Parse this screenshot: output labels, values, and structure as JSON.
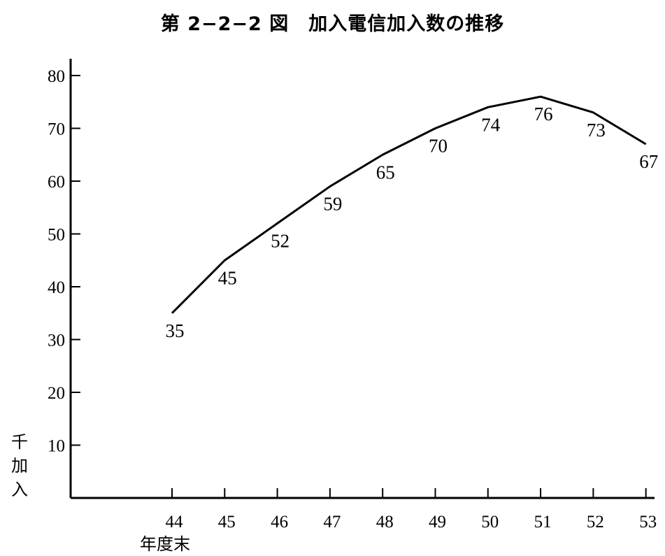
{
  "title": "第 2−2−2 図　加入電信加入数の推移",
  "chart_data": {
    "type": "line",
    "title": "第 2−2−2 図　加入電信加入数の推移",
    "x": [
      "44",
      "45",
      "46",
      "47",
      "48",
      "49",
      "50",
      "51",
      "52",
      "53"
    ],
    "xlabel": "年度末",
    "ylabel": "千加入",
    "ylim": [
      0,
      80
    ],
    "yticks": [
      10,
      20,
      30,
      40,
      50,
      60,
      70,
      80
    ],
    "series": [
      {
        "values": [
          35,
          45,
          52,
          59,
          65,
          70,
          74,
          76,
          73,
          67
        ]
      }
    ],
    "grid": false,
    "legend": "none"
  }
}
